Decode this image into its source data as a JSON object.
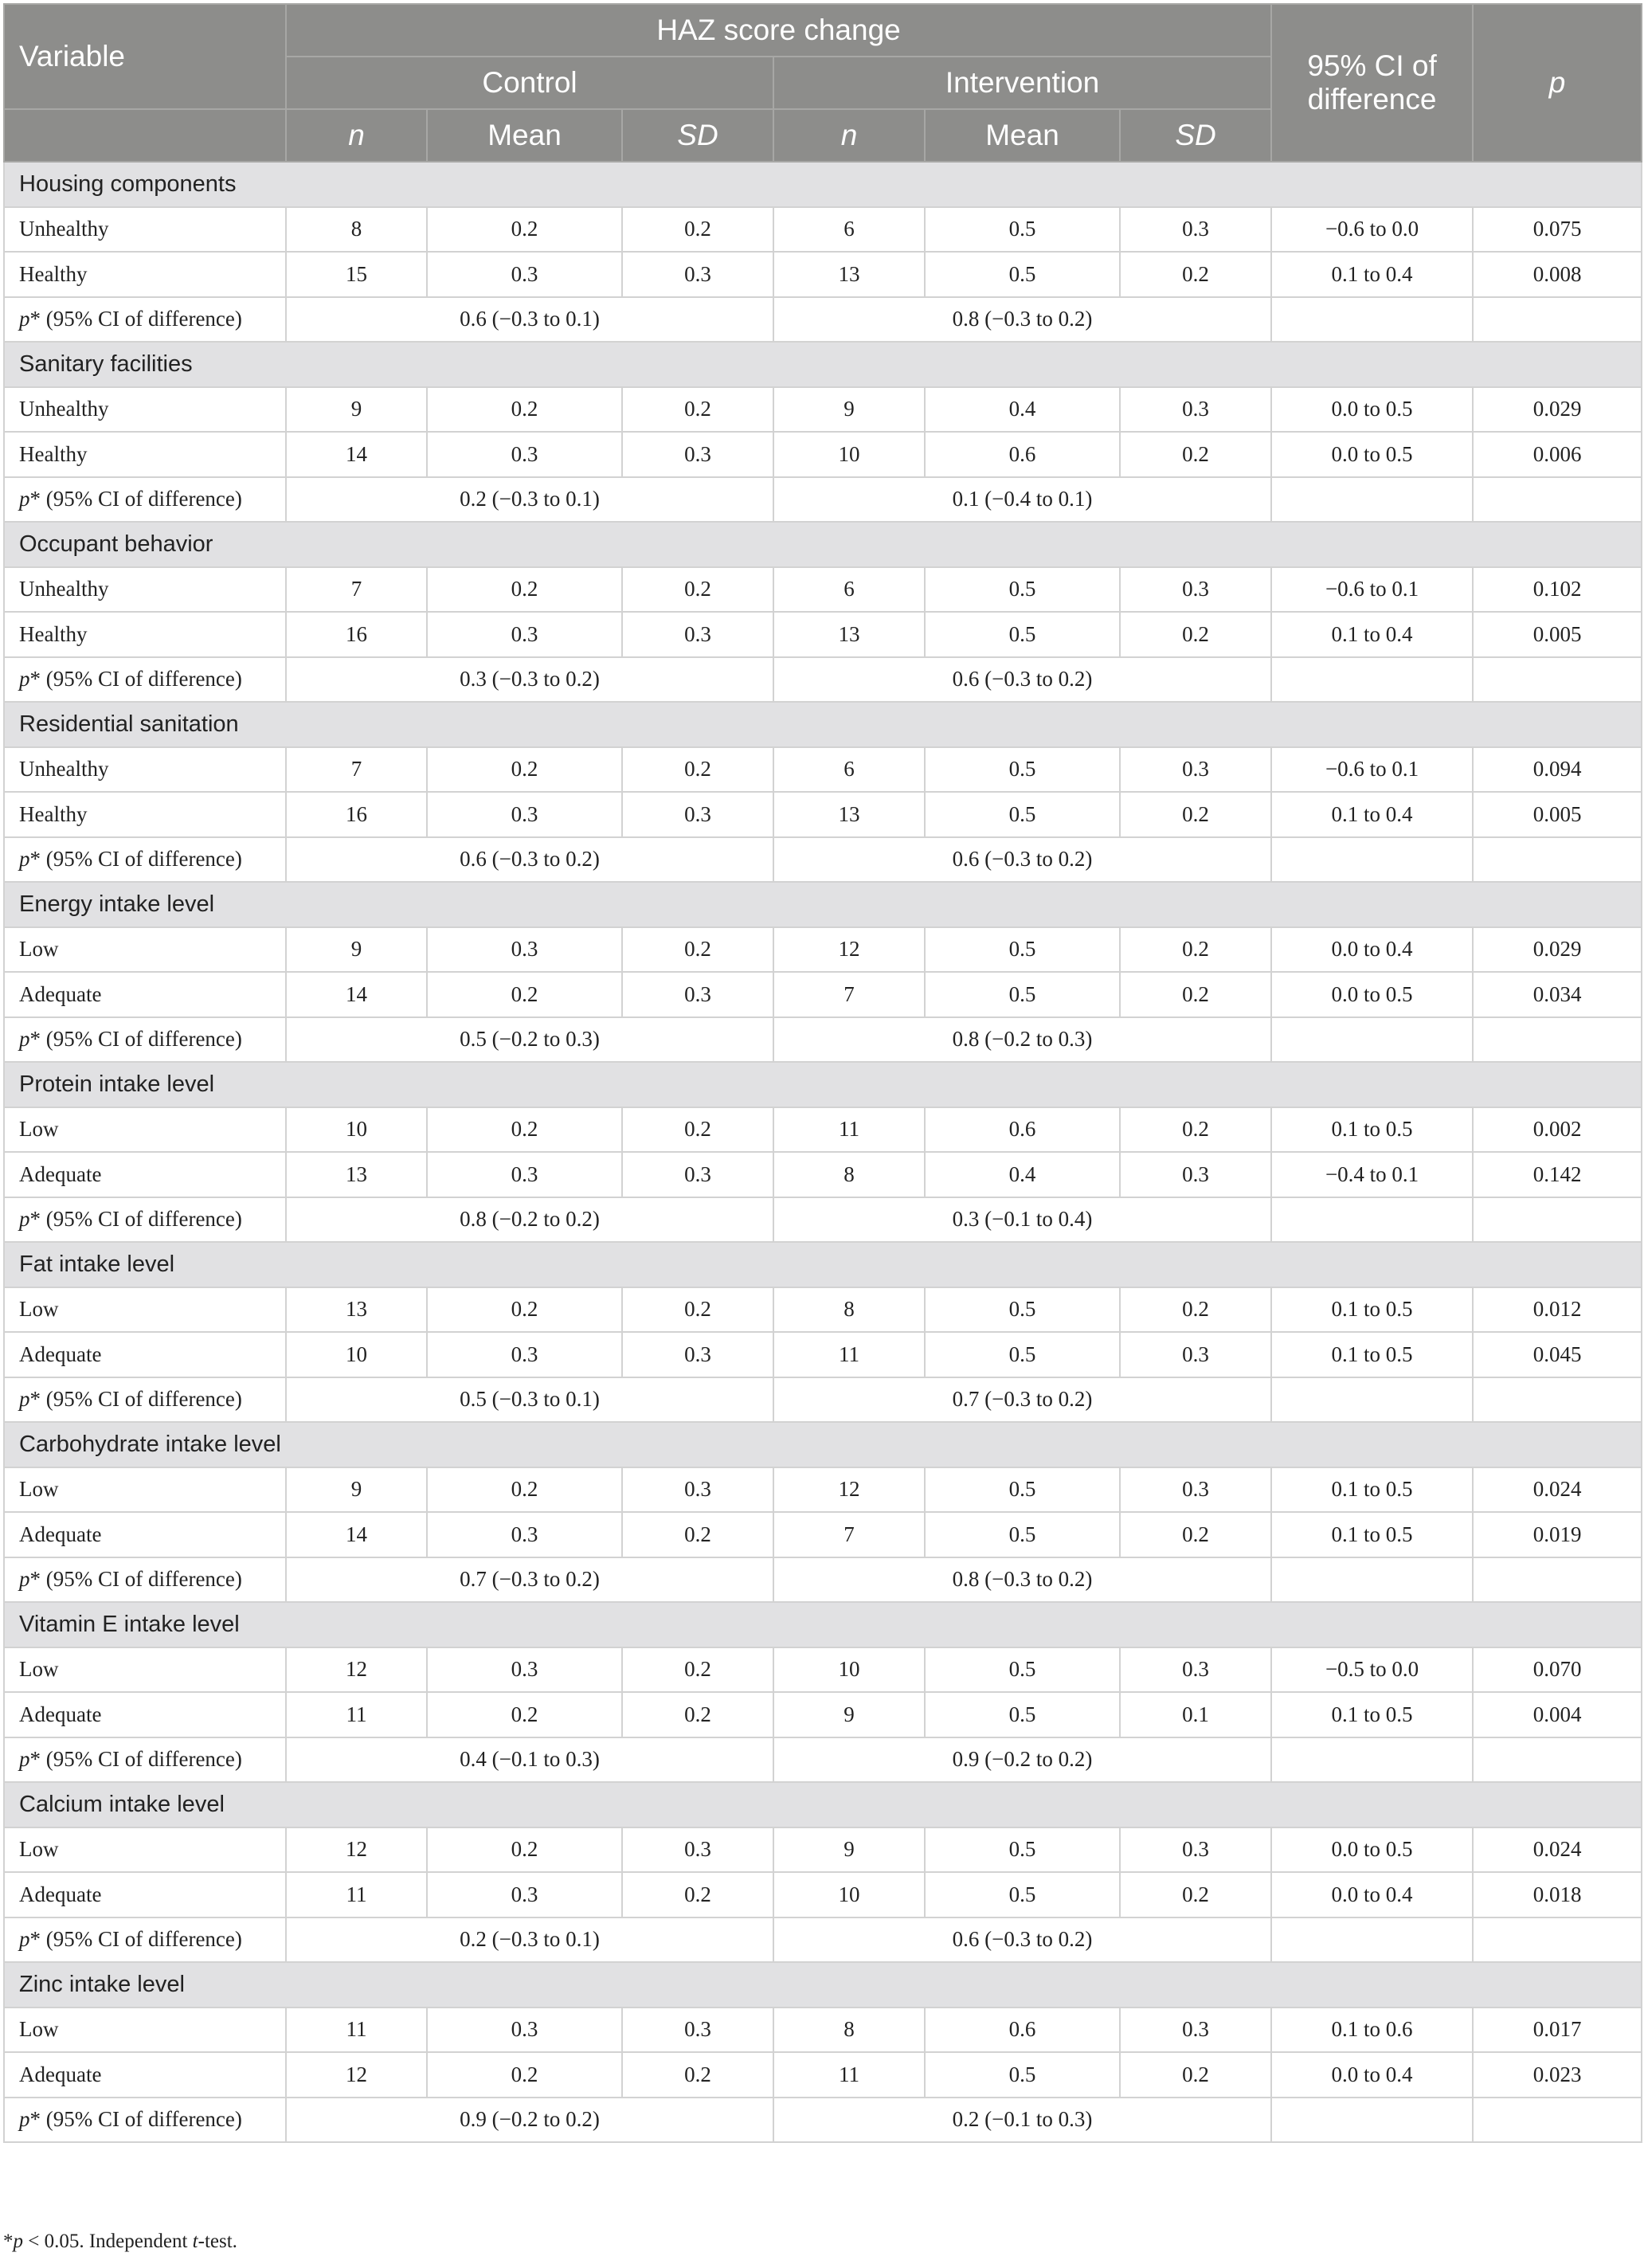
{
  "header": {
    "variable": "Variable",
    "haz": "HAZ score change",
    "control": "Control",
    "intervention": "Intervention",
    "ci": "95% CI of difference",
    "p": "p",
    "n": "n",
    "mean": "Mean",
    "sd": "SD"
  },
  "sections": [
    {
      "title": "Housing components",
      "rows": [
        {
          "label": "Unhealthy",
          "cn": "8",
          "cmean": "0.2",
          "csd": "0.2",
          "in": "6",
          "imean": "0.5",
          "isd": "0.3",
          "ci": "−0.6 to 0.0",
          "p": "0.075"
        },
        {
          "label": "Healthy",
          "cn": "15",
          "cmean": "0.3",
          "csd": "0.3",
          "in": "13",
          "imean": "0.5",
          "isd": "0.2",
          "ci": "0.1 to 0.4",
          "p": "0.008"
        }
      ],
      "pstar": {
        "control": "0.6 (−0.3 to 0.1)",
        "intervention": "0.8 (−0.3 to 0.2)"
      }
    },
    {
      "title": "Sanitary facilities",
      "rows": [
        {
          "label": "Unhealthy",
          "cn": "9",
          "cmean": "0.2",
          "csd": "0.2",
          "in": "9",
          "imean": "0.4",
          "isd": "0.3",
          "ci": "0.0 to 0.5",
          "p": "0.029"
        },
        {
          "label": "Healthy",
          "cn": "14",
          "cmean": "0.3",
          "csd": "0.3",
          "in": "10",
          "imean": "0.6",
          "isd": "0.2",
          "ci": "0.0 to 0.5",
          "p": "0.006"
        }
      ],
      "pstar": {
        "control": "0.2 (−0.3 to 0.1)",
        "intervention": "0.1 (−0.4 to 0.1)"
      }
    },
    {
      "title": "Occupant behavior",
      "rows": [
        {
          "label": "Unhealthy",
          "cn": "7",
          "cmean": "0.2",
          "csd": "0.2",
          "in": "6",
          "imean": "0.5",
          "isd": "0.3",
          "ci": "−0.6 to 0.1",
          "p": "0.102"
        },
        {
          "label": "Healthy",
          "cn": "16",
          "cmean": "0.3",
          "csd": "0.3",
          "in": "13",
          "imean": "0.5",
          "isd": "0.2",
          "ci": "0.1 to 0.4",
          "p": "0.005"
        }
      ],
      "pstar": {
        "control": "0.3 (−0.3 to 0.2)",
        "intervention": "0.6 (−0.3 to 0.2)"
      }
    },
    {
      "title": "Residential sanitation",
      "rows": [
        {
          "label": "Unhealthy",
          "cn": "7",
          "cmean": "0.2",
          "csd": "0.2",
          "in": "6",
          "imean": "0.5",
          "isd": "0.3",
          "ci": "−0.6 to 0.1",
          "p": "0.094"
        },
        {
          "label": "Healthy",
          "cn": "16",
          "cmean": "0.3",
          "csd": "0.3",
          "in": "13",
          "imean": "0.5",
          "isd": "0.2",
          "ci": "0.1 to 0.4",
          "p": "0.005"
        }
      ],
      "pstar": {
        "control": "0.6 (−0.3 to 0.2)",
        "intervention": "0.6 (−0.3 to 0.2)"
      }
    },
    {
      "title": "Energy intake level",
      "rows": [
        {
          "label": "Low",
          "cn": "9",
          "cmean": "0.3",
          "csd": "0.2",
          "in": "12",
          "imean": "0.5",
          "isd": "0.2",
          "ci": "0.0 to 0.4",
          "p": "0.029"
        },
        {
          "label": "Adequate",
          "cn": "14",
          "cmean": "0.2",
          "csd": "0.3",
          "in": "7",
          "imean": "0.5",
          "isd": "0.2",
          "ci": "0.0 to 0.5",
          "p": "0.034"
        }
      ],
      "pstar": {
        "control": "0.5 (−0.2 to 0.3)",
        "intervention": "0.8 (−0.2 to 0.3)"
      }
    },
    {
      "title": "Protein intake level",
      "rows": [
        {
          "label": "Low",
          "cn": "10",
          "cmean": "0.2",
          "csd": "0.2",
          "in": "11",
          "imean": "0.6",
          "isd": "0.2",
          "ci": "0.1 to 0.5",
          "p": "0.002"
        },
        {
          "label": "Adequate",
          "cn": "13",
          "cmean": "0.3",
          "csd": "0.3",
          "in": "8",
          "imean": "0.4",
          "isd": "0.3",
          "ci": "−0.4 to 0.1",
          "p": "0.142"
        }
      ],
      "pstar": {
        "control": "0.8 (−0.2 to 0.2)",
        "intervention": "0.3 (−0.1 to 0.4)"
      }
    },
    {
      "title": "Fat intake level",
      "rows": [
        {
          "label": "Low",
          "cn": "13",
          "cmean": "0.2",
          "csd": "0.2",
          "in": "8",
          "imean": "0.5",
          "isd": "0.2",
          "ci": "0.1 to 0.5",
          "p": "0.012"
        },
        {
          "label": "Adequate",
          "cn": "10",
          "cmean": "0.3",
          "csd": "0.3",
          "in": "11",
          "imean": "0.5",
          "isd": "0.3",
          "ci": "0.1 to 0.5",
          "p": "0.045"
        }
      ],
      "pstar": {
        "control": "0.5 (−0.3 to 0.1)",
        "intervention": "0.7 (−0.3 to 0.2)"
      }
    },
    {
      "title": "Carbohydrate intake level",
      "rows": [
        {
          "label": "Low",
          "cn": "9",
          "cmean": "0.2",
          "csd": "0.3",
          "in": "12",
          "imean": "0.5",
          "isd": "0.3",
          "ci": "0.1 to 0.5",
          "p": "0.024"
        },
        {
          "label": "Adequate",
          "cn": "14",
          "cmean": "0.3",
          "csd": "0.2",
          "in": "7",
          "imean": "0.5",
          "isd": "0.2",
          "ci": "0.1 to 0.5",
          "p": "0.019"
        }
      ],
      "pstar": {
        "control": "0.7 (−0.3 to 0.2)",
        "intervention": "0.8 (−0.3 to 0.2)"
      }
    },
    {
      "title": "Vitamin E intake level",
      "rows": [
        {
          "label": "Low",
          "cn": "12",
          "cmean": "0.3",
          "csd": "0.2",
          "in": "10",
          "imean": "0.5",
          "isd": "0.3",
          "ci": "−0.5 to 0.0",
          "p": "0.070"
        },
        {
          "label": "Adequate",
          "cn": "11",
          "cmean": "0.2",
          "csd": "0.2",
          "in": "9",
          "imean": "0.5",
          "isd": "0.1",
          "ci": "0.1 to 0.5",
          "p": "0.004"
        }
      ],
      "pstar": {
        "control": "0.4 (−0.1 to 0.3)",
        "intervention": "0.9 (−0.2 to 0.2)"
      }
    },
    {
      "title": "Calcium intake level",
      "rows": [
        {
          "label": "Low",
          "cn": "12",
          "cmean": "0.2",
          "csd": "0.3",
          "in": "9",
          "imean": "0.5",
          "isd": "0.3",
          "ci": "0.0 to 0.5",
          "p": "0.024"
        },
        {
          "label": "Adequate",
          "cn": "11",
          "cmean": "0.3",
          "csd": "0.2",
          "in": "10",
          "imean": "0.5",
          "isd": "0.2",
          "ci": "0.0 to 0.4",
          "p": "0.018"
        }
      ],
      "pstar": {
        "control": "0.2 (−0.3 to 0.1)",
        "intervention": "0.6 (−0.3 to 0.2)"
      }
    },
    {
      "title": "Zinc intake level",
      "rows": [
        {
          "label": "Low",
          "cn": "11",
          "cmean": "0.3",
          "csd": "0.3",
          "in": "8",
          "imean": "0.6",
          "isd": "0.3",
          "ci": "0.1 to 0.6",
          "p": "0.017"
        },
        {
          "label": "Adequate",
          "cn": "12",
          "cmean": "0.2",
          "csd": "0.2",
          "in": "11",
          "imean": "0.5",
          "isd": "0.2",
          "ci": "0.0 to 0.4",
          "p": "0.023"
        }
      ],
      "pstar": {
        "control": "0.9 (−0.2 to 0.2)",
        "intervention": "0.2 (−0.1 to 0.3)"
      }
    }
  ],
  "pstar_label": {
    "p": "p",
    "star": "* (95% CI of difference)"
  },
  "footnote": {
    "star": "*",
    "p": "p",
    "mid": " < 0.05. Independent ",
    "t": "t",
    "end": "-test."
  }
}
